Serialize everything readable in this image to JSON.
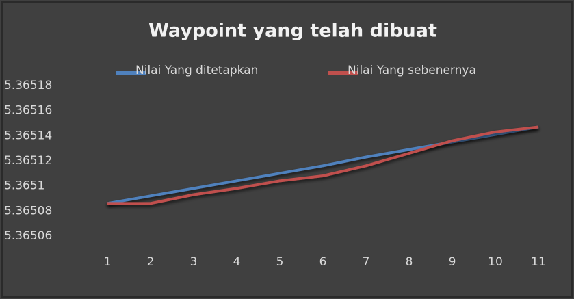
{
  "chart_data": {
    "type": "line",
    "title": "Waypoint yang telah dibuat",
    "categories": [
      "1",
      "2",
      "3",
      "4",
      "5",
      "6",
      "7",
      "8",
      "9",
      "10",
      "11"
    ],
    "series": [
      {
        "name": "Nilai Yang ditetapkan",
        "color": "#4f81bd",
        "values": [
          5.365086,
          5.365092,
          5.365098,
          5.365104,
          5.36511,
          5.365116,
          5.365123,
          5.365129,
          5.365135,
          5.365141,
          5.365147
        ]
      },
      {
        "name": "Nilai Yang sebenernya",
        "color": "#c0504d",
        "values": [
          5.365086,
          5.365086,
          5.365093,
          5.365098,
          5.365104,
          5.365108,
          5.365116,
          5.365126,
          5.365136,
          5.365143,
          5.365147
        ]
      }
    ],
    "ylim": [
      5.36506,
      5.36518
    ],
    "yticks": [
      5.36506,
      5.36508,
      5.3651,
      5.36512,
      5.36514,
      5.36516,
      5.36518
    ],
    "legend": "top"
  }
}
